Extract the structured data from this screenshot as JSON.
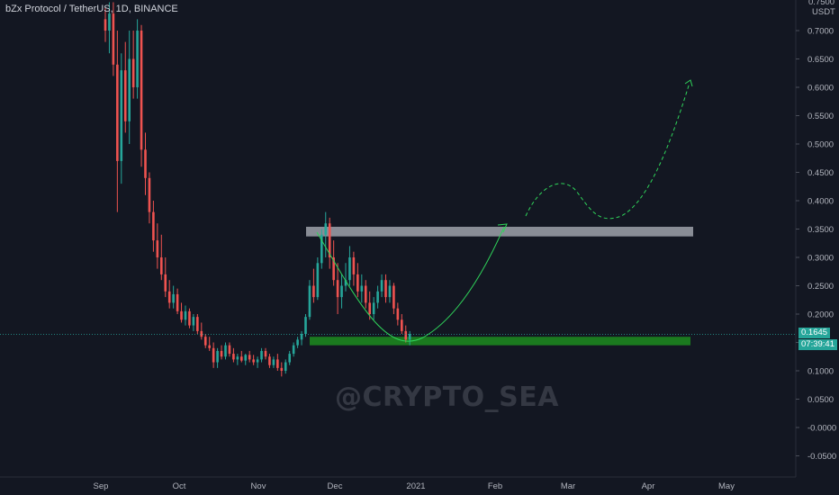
{
  "header": {
    "title": "bZx Protocol / TetherUS, 1D, BINANCE"
  },
  "watermark": "@CRYPTO_SEA",
  "price_axis": {
    "unit": "USDT",
    "top_partial": "0.7500"
  },
  "badges": {
    "last_price": "0.1645",
    "countdown": "07:39:41"
  },
  "colors": {
    "background": "#131722",
    "bull": "#26a69a",
    "bear": "#ef5350",
    "support": "#1b7a1f",
    "resistance": "#b2b5be",
    "projection": "#2fd45a",
    "price_line": "#26a69a"
  },
  "chart_data": {
    "type": "candlestick",
    "title": "bZx Protocol / TetherUS, 1D, BINANCE",
    "y_ticks": [
      "0.7000",
      "0.6500",
      "0.6000",
      "0.5500",
      "0.5000",
      "0.4500",
      "0.4000",
      "0.3500",
      "0.3000",
      "0.2500",
      "0.2000",
      "0.1500",
      "0.1000",
      "0.0500",
      "-0.0000",
      "-0.0500"
    ],
    "ylim": [
      -0.065,
      0.765
    ],
    "x_ticks": [
      "Sep",
      "Oct",
      "Nov",
      "Dec",
      "2021",
      "Feb",
      "Mar",
      "Apr",
      "May"
    ],
    "last_price": 0.1645,
    "zones": {
      "resistance": {
        "low": 0.337,
        "high": 0.354
      },
      "support": {
        "low": 0.145,
        "high": 0.16
      }
    },
    "candles": [
      [
        0.72,
        0.74,
        0.68,
        0.7
      ],
      [
        0.7,
        0.75,
        0.66,
        0.73
      ],
      [
        0.73,
        0.75,
        0.62,
        0.64
      ],
      [
        0.64,
        0.7,
        0.38,
        0.47
      ],
      [
        0.47,
        0.66,
        0.43,
        0.63
      ],
      [
        0.63,
        0.68,
        0.52,
        0.54
      ],
      [
        0.54,
        0.7,
        0.5,
        0.65
      ],
      [
        0.65,
        0.7,
        0.58,
        0.6
      ],
      [
        0.6,
        0.72,
        0.58,
        0.7
      ],
      [
        0.7,
        0.71,
        0.46,
        0.49
      ],
      [
        0.49,
        0.52,
        0.41,
        0.44
      ],
      [
        0.44,
        0.45,
        0.36,
        0.38
      ],
      [
        0.38,
        0.4,
        0.31,
        0.33
      ],
      [
        0.33,
        0.36,
        0.28,
        0.3
      ],
      [
        0.3,
        0.34,
        0.26,
        0.27
      ],
      [
        0.27,
        0.3,
        0.23,
        0.24
      ],
      [
        0.24,
        0.26,
        0.21,
        0.22
      ],
      [
        0.22,
        0.25,
        0.21,
        0.235
      ],
      [
        0.235,
        0.245,
        0.2,
        0.205
      ],
      [
        0.205,
        0.22,
        0.185,
        0.19
      ],
      [
        0.19,
        0.215,
        0.18,
        0.205
      ],
      [
        0.205,
        0.21,
        0.175,
        0.18
      ],
      [
        0.18,
        0.2,
        0.17,
        0.195
      ],
      [
        0.195,
        0.2,
        0.165,
        0.17
      ],
      [
        0.17,
        0.185,
        0.155,
        0.16
      ],
      [
        0.16,
        0.165,
        0.14,
        0.145
      ],
      [
        0.145,
        0.16,
        0.135,
        0.14
      ],
      [
        0.14,
        0.15,
        0.105,
        0.115
      ],
      [
        0.115,
        0.14,
        0.105,
        0.135
      ],
      [
        0.135,
        0.145,
        0.12,
        0.125
      ],
      [
        0.125,
        0.15,
        0.12,
        0.145
      ],
      [
        0.145,
        0.15,
        0.125,
        0.13
      ],
      [
        0.13,
        0.14,
        0.115,
        0.12
      ],
      [
        0.12,
        0.13,
        0.11,
        0.125
      ],
      [
        0.125,
        0.135,
        0.115,
        0.118
      ],
      [
        0.118,
        0.13,
        0.11,
        0.128
      ],
      [
        0.128,
        0.135,
        0.115,
        0.12
      ],
      [
        0.12,
        0.128,
        0.11,
        0.115
      ],
      [
        0.115,
        0.125,
        0.105,
        0.12
      ],
      [
        0.12,
        0.14,
        0.115,
        0.135
      ],
      [
        0.135,
        0.14,
        0.12,
        0.125
      ],
      [
        0.125,
        0.13,
        0.105,
        0.11
      ],
      [
        0.11,
        0.125,
        0.105,
        0.12
      ],
      [
        0.12,
        0.13,
        0.1,
        0.105
      ],
      [
        0.105,
        0.115,
        0.09,
        0.1
      ],
      [
        0.1,
        0.12,
        0.095,
        0.115
      ],
      [
        0.115,
        0.135,
        0.11,
        0.13
      ],
      [
        0.13,
        0.15,
        0.125,
        0.145
      ],
      [
        0.145,
        0.16,
        0.14,
        0.155
      ],
      [
        0.155,
        0.17,
        0.145,
        0.165
      ],
      [
        0.165,
        0.2,
        0.16,
        0.195
      ],
      [
        0.195,
        0.26,
        0.19,
        0.25
      ],
      [
        0.25,
        0.28,
        0.22,
        0.23
      ],
      [
        0.23,
        0.3,
        0.225,
        0.29
      ],
      [
        0.29,
        0.35,
        0.28,
        0.34
      ],
      [
        0.34,
        0.38,
        0.3,
        0.36
      ],
      [
        0.36,
        0.37,
        0.28,
        0.3
      ],
      [
        0.3,
        0.33,
        0.25,
        0.26
      ],
      [
        0.26,
        0.29,
        0.2,
        0.23
      ],
      [
        0.23,
        0.27,
        0.21,
        0.25
      ],
      [
        0.25,
        0.29,
        0.24,
        0.26
      ],
      [
        0.26,
        0.32,
        0.25,
        0.3
      ],
      [
        0.3,
        0.31,
        0.25,
        0.27
      ],
      [
        0.27,
        0.29,
        0.23,
        0.24
      ],
      [
        0.24,
        0.27,
        0.22,
        0.25
      ],
      [
        0.25,
        0.26,
        0.21,
        0.22
      ],
      [
        0.22,
        0.24,
        0.19,
        0.2
      ],
      [
        0.2,
        0.23,
        0.19,
        0.22
      ],
      [
        0.22,
        0.25,
        0.21,
        0.24
      ],
      [
        0.24,
        0.27,
        0.23,
        0.26
      ],
      [
        0.26,
        0.27,
        0.22,
        0.23
      ],
      [
        0.23,
        0.26,
        0.22,
        0.25
      ],
      [
        0.25,
        0.255,
        0.2,
        0.21
      ],
      [
        0.21,
        0.22,
        0.18,
        0.19
      ],
      [
        0.19,
        0.2,
        0.165,
        0.17
      ],
      [
        0.17,
        0.18,
        0.15,
        0.155
      ],
      [
        0.155,
        0.17,
        0.145,
        0.165
      ]
    ]
  }
}
